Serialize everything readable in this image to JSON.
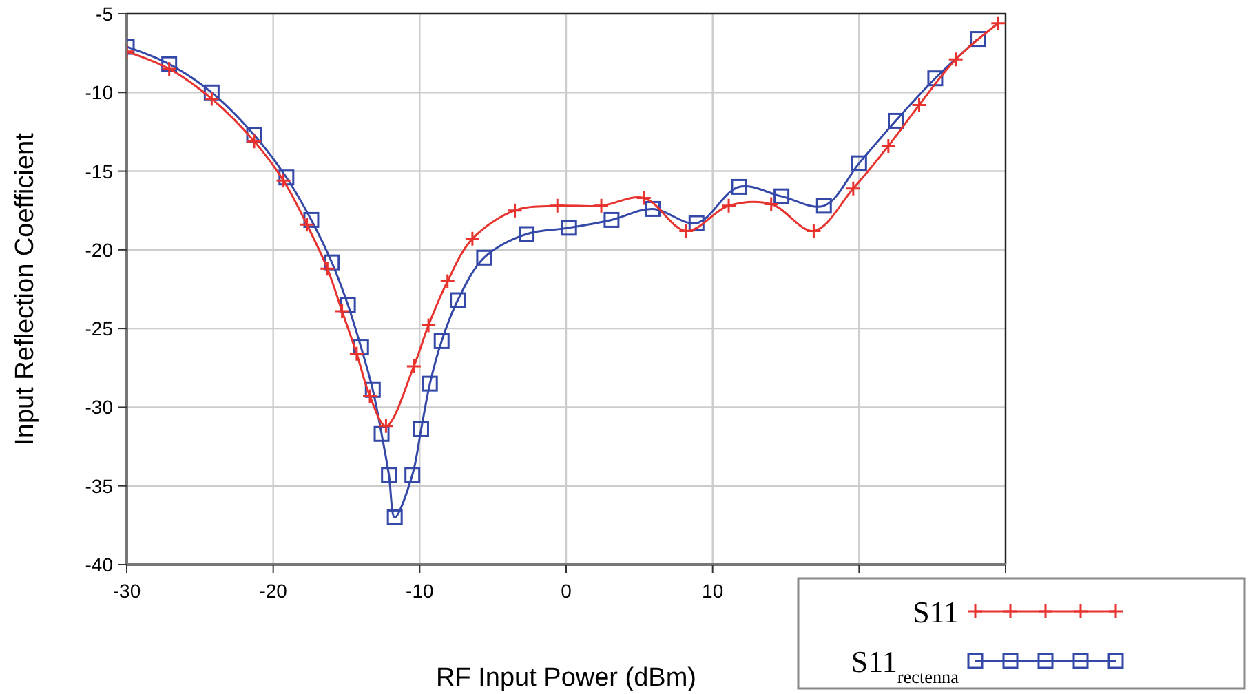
{
  "chart_data": {
    "type": "line",
    "xlabel": "RF Input Power (dBm)",
    "ylabel": "Input Reflection Coefficient",
    "xlim": [
      -30,
      30
    ],
    "ylim": [
      -40,
      -5
    ],
    "xticks": [
      -30,
      -20,
      -10,
      0,
      10,
      {
        "value": 20,
        "label": null
      },
      {
        "value": 30,
        "label": null
      }
    ],
    "yticks": [
      -40,
      -35,
      -30,
      -25,
      -20,
      -15,
      -10,
      -5
    ],
    "grid": true,
    "legend": "bottom right",
    "line_style": "solid",
    "series": [
      {
        "name": "S11",
        "color": "#e8322e",
        "marker": "cross",
        "x": [
          -30,
          -27.1,
          -24.2,
          -21.3,
          -19.3,
          -17.7,
          -16.3,
          -15.3,
          -14.3,
          -13.4,
          -12.3,
          -10.4,
          -9.4,
          -8.1,
          -6.4,
          -3.5,
          -0.6,
          2.4,
          5.3,
          8.2,
          11.1,
          14.0,
          16.9,
          19.6,
          22.0,
          24.1,
          26.6,
          29.5
        ],
        "values": [
          -7.4,
          -8.5,
          -10.4,
          -13.1,
          -15.6,
          -18.4,
          -21.2,
          -23.9,
          -26.6,
          -29.3,
          -31.2,
          -27.4,
          -24.8,
          -22.0,
          -19.3,
          -17.5,
          -17.2,
          -17.2,
          -16.7,
          -18.8,
          -17.2,
          -17.1,
          -18.8,
          -16.1,
          -13.4,
          -10.8,
          -7.9,
          -5.6
        ]
      },
      {
        "name": "S11$_{rectenna}$",
        "color": "#3448a8",
        "marker": "square",
        "x": [
          -30,
          -27.1,
          -24.2,
          -21.3,
          -19.1,
          -17.4,
          -16.0,
          -14.9,
          -14.0,
          -13.2,
          -12.6,
          -12.1,
          -11.7,
          -10.5,
          -9.9,
          -9.3,
          -8.5,
          -7.4,
          -5.6,
          -2.7,
          0.2,
          3.1,
          5.9,
          8.9,
          11.8,
          14.7,
          17.6,
          20.0,
          22.5,
          25.2,
          28.1
        ],
        "values": [
          -7.1,
          -8.2,
          -10.0,
          -12.7,
          -15.4,
          -18.1,
          -20.8,
          -23.5,
          -26.2,
          -28.9,
          -31.7,
          -34.3,
          -37.0,
          -34.3,
          -31.4,
          -28.5,
          -25.8,
          -23.2,
          -20.5,
          -19.0,
          -18.6,
          -18.1,
          -17.4,
          -18.3,
          -16.0,
          -16.6,
          -17.2,
          -14.5,
          -11.8,
          -9.1,
          -6.6
        ]
      }
    ]
  }
}
